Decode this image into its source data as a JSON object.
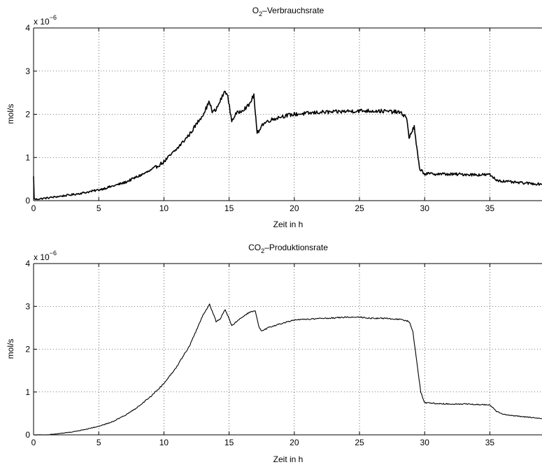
{
  "chart_data": [
    {
      "type": "line",
      "title_main": "O",
      "title_sub": "2",
      "title_rest": "–Verbrauchsrate",
      "xlabel": "Zeit in h",
      "ylabel": "mol/s",
      "exponent_base": "x 10",
      "exponent_power": "−6",
      "xlim": [
        0,
        39
      ],
      "ylim": [
        0,
        4
      ],
      "grid": true,
      "xticks": [
        0,
        5,
        10,
        15,
        20,
        25,
        30,
        35
      ],
      "yticks": [
        0,
        1,
        2,
        3,
        4
      ],
      "noise": 0.045,
      "stroke_width": 1.6,
      "series": [
        {
          "x": [
            0,
            0.05,
            0.1,
            1,
            2,
            3,
            4,
            5,
            6,
            7,
            8,
            9,
            10,
            11,
            12,
            13,
            13.5,
            13.7,
            14,
            14.3,
            14.7,
            14.9,
            15.2,
            15.5,
            16,
            16.5,
            16.9,
            17,
            17.15,
            17.5,
            18,
            19,
            20,
            21,
            22,
            23,
            24,
            25,
            26,
            27,
            28,
            28.6,
            28.8,
            29,
            29.2,
            29.4,
            29.6,
            30,
            31,
            32,
            33,
            34,
            35,
            35.5,
            36,
            37,
            38,
            39
          ],
          "y": [
            0.55,
            0.05,
            0.03,
            0.06,
            0.1,
            0.14,
            0.19,
            0.25,
            0.33,
            0.42,
            0.56,
            0.7,
            0.9,
            1.2,
            1.55,
            2.0,
            2.3,
            2.05,
            2.1,
            2.3,
            2.55,
            2.4,
            1.85,
            2.0,
            2.1,
            2.2,
            2.45,
            2.05,
            1.55,
            1.75,
            1.85,
            1.95,
            2.0,
            2.02,
            2.05,
            2.05,
            2.07,
            2.08,
            2.08,
            2.07,
            2.05,
            1.95,
            1.45,
            1.6,
            1.7,
            1.2,
            0.75,
            0.62,
            0.62,
            0.61,
            0.61,
            0.6,
            0.6,
            0.48,
            0.45,
            0.42,
            0.4,
            0.38
          ]
        }
      ]
    },
    {
      "type": "line",
      "title_main": "CO",
      "title_sub": "2",
      "title_rest": "–Produktionsrate",
      "xlabel": "Zeit in h",
      "ylabel": "mol/s",
      "exponent_base": "x 10",
      "exponent_power": "−6",
      "xlim": [
        0,
        39
      ],
      "ylim": [
        0,
        4
      ],
      "grid": true,
      "xticks": [
        0,
        5,
        10,
        15,
        20,
        25,
        30,
        35
      ],
      "yticks": [
        0,
        1,
        2,
        3,
        4
      ],
      "noise": 0.015,
      "stroke_width": 1.1,
      "series": [
        {
          "x": [
            0,
            1,
            2,
            3,
            4,
            5,
            6,
            7,
            8,
            9,
            10,
            11,
            12,
            12.5,
            13,
            13.5,
            14,
            14.3,
            14.7,
            15.2,
            15.6,
            16,
            16.5,
            17,
            17.3,
            17.5,
            18,
            19,
            20,
            21,
            22,
            23,
            24,
            25,
            26,
            27,
            28,
            28.8,
            29.1,
            29.4,
            29.7,
            30,
            31,
            32,
            33,
            34,
            35,
            35.5,
            36,
            37,
            38,
            39
          ],
          "y": [
            0,
            0,
            0.03,
            0.07,
            0.13,
            0.2,
            0.3,
            0.45,
            0.65,
            0.9,
            1.2,
            1.6,
            2.1,
            2.45,
            2.8,
            3.05,
            2.65,
            2.7,
            2.93,
            2.55,
            2.65,
            2.75,
            2.85,
            2.9,
            2.5,
            2.42,
            2.5,
            2.6,
            2.68,
            2.7,
            2.72,
            2.73,
            2.75,
            2.75,
            2.72,
            2.72,
            2.7,
            2.65,
            2.4,
            1.7,
            1.0,
            0.75,
            0.73,
            0.72,
            0.72,
            0.71,
            0.7,
            0.55,
            0.48,
            0.44,
            0.41,
            0.38
          ]
        }
      ]
    }
  ]
}
